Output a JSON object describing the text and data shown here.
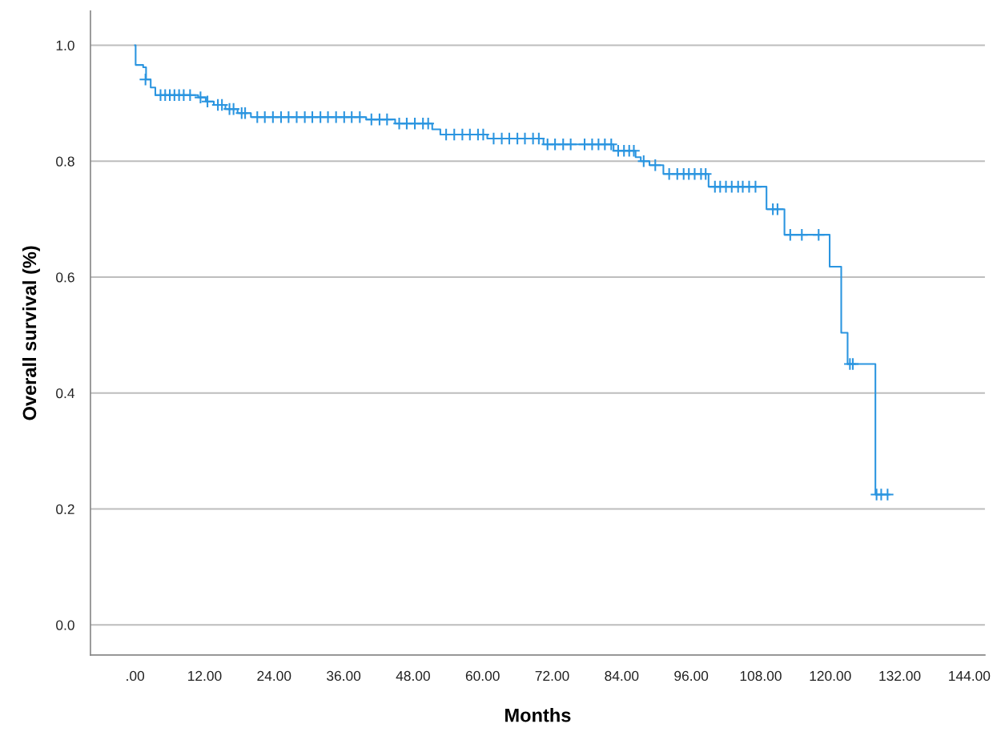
{
  "chart_data": {
    "type": "step",
    "xlabel": "Months",
    "ylabel": "Overall survival (%)",
    "xlim": [
      -7.7,
      146.7
    ],
    "ylim": [
      -0.052,
      1.059
    ],
    "xticks": [
      {
        "value": 0,
        "label": ".00"
      },
      {
        "value": 12,
        "label": "12.00"
      },
      {
        "value": 24,
        "label": "24.00"
      },
      {
        "value": 36,
        "label": "36.00"
      },
      {
        "value": 48,
        "label": "48.00"
      },
      {
        "value": 60,
        "label": "60.00"
      },
      {
        "value": 72,
        "label": "72.00"
      },
      {
        "value": 84,
        "label": "84.00"
      },
      {
        "value": 96,
        "label": "96.00"
      },
      {
        "value": 108,
        "label": "108.00"
      },
      {
        "value": 120,
        "label": "120.00"
      },
      {
        "value": 132,
        "label": "132.00"
      },
      {
        "value": 144,
        "label": "144.00"
      }
    ],
    "yticks": [
      {
        "value": 0,
        "label": "0.0"
      },
      {
        "value": 0.2,
        "label": "0.2"
      },
      {
        "value": 0.4,
        "label": "0.4"
      },
      {
        "value": 0.6,
        "label": "0.6"
      },
      {
        "value": 0.8,
        "label": "0.8"
      },
      {
        "value": 1,
        "label": "1.0"
      }
    ],
    "grid": "y",
    "series": [
      {
        "color": "#2b95e0",
        "x": [
          0,
          0.1,
          1.4,
          1.9,
          2.7,
          3.5,
          10.9,
          12.2,
          13.6,
          15.6,
          17.7,
          20.0,
          39.9,
          44.9,
          51.3,
          52.7,
          60.8,
          70.5,
          82.6,
          86.4,
          87.3,
          88.8,
          91.2,
          99.0,
          109.0,
          112.1,
          119.9,
          121.9,
          123.0,
          127.8,
          130.2
        ],
        "values": [
          1.0,
          0.966,
          0.962,
          0.941,
          0.927,
          0.914,
          0.91,
          0.903,
          0.897,
          0.89,
          0.883,
          0.876,
          0.872,
          0.865,
          0.855,
          0.846,
          0.839,
          0.829,
          0.818,
          0.807,
          0.8,
          0.793,
          0.778,
          0.756,
          0.717,
          0.673,
          0.618,
          0.504,
          0.45,
          0.225,
          0.225
        ]
      },
      {
        "type": "scatter",
        "marker": "cross",
        "color": "#2b95e0",
        "x": [
          1.8,
          4.4,
          5.2,
          6.0,
          6.8,
          7.6,
          8.4,
          9.5,
          11.3,
          12.5,
          14.3,
          15.0,
          16.3,
          17.0,
          18.4,
          19.0,
          21.1,
          22.4,
          23.8,
          25.2,
          26.5,
          27.9,
          29.3,
          30.6,
          32.0,
          33.3,
          34.7,
          36.1,
          37.4,
          38.8,
          40.8,
          42.2,
          43.5,
          45.6,
          46.9,
          48.3,
          49.7,
          50.6,
          53.7,
          55.1,
          56.5,
          57.8,
          59.2,
          60.1,
          61.9,
          63.3,
          64.6,
          66.0,
          67.3,
          68.7,
          69.7,
          71.2,
          72.5,
          73.9,
          75.2,
          77.6,
          78.9,
          80.0,
          81.1,
          82.2,
          83.4,
          84.4,
          85.3,
          86.1,
          87.8,
          89.8,
          92.2,
          93.6,
          94.7,
          95.6,
          96.6,
          97.7,
          98.5,
          100.1,
          101.0,
          102.0,
          103.0,
          104.1,
          104.9,
          106.0,
          107.1,
          110.1,
          110.9,
          113.1,
          115.1,
          118.0,
          123.4,
          123.9,
          128.0,
          128.8,
          129.9
        ],
        "values": [
          0.941,
          0.914,
          0.914,
          0.914,
          0.914,
          0.914,
          0.914,
          0.914,
          0.91,
          0.903,
          0.897,
          0.897,
          0.89,
          0.89,
          0.883,
          0.883,
          0.876,
          0.876,
          0.876,
          0.876,
          0.876,
          0.876,
          0.876,
          0.876,
          0.876,
          0.876,
          0.876,
          0.876,
          0.876,
          0.876,
          0.872,
          0.872,
          0.872,
          0.865,
          0.865,
          0.865,
          0.865,
          0.865,
          0.846,
          0.846,
          0.846,
          0.846,
          0.846,
          0.846,
          0.839,
          0.839,
          0.839,
          0.839,
          0.839,
          0.839,
          0.839,
          0.829,
          0.829,
          0.829,
          0.829,
          0.829,
          0.829,
          0.829,
          0.829,
          0.829,
          0.818,
          0.818,
          0.818,
          0.818,
          0.8,
          0.793,
          0.778,
          0.778,
          0.778,
          0.778,
          0.778,
          0.778,
          0.778,
          0.756,
          0.756,
          0.756,
          0.756,
          0.756,
          0.756,
          0.756,
          0.756,
          0.717,
          0.717,
          0.673,
          0.673,
          0.673,
          0.45,
          0.45,
          0.225,
          0.225,
          0.225
        ]
      }
    ]
  }
}
